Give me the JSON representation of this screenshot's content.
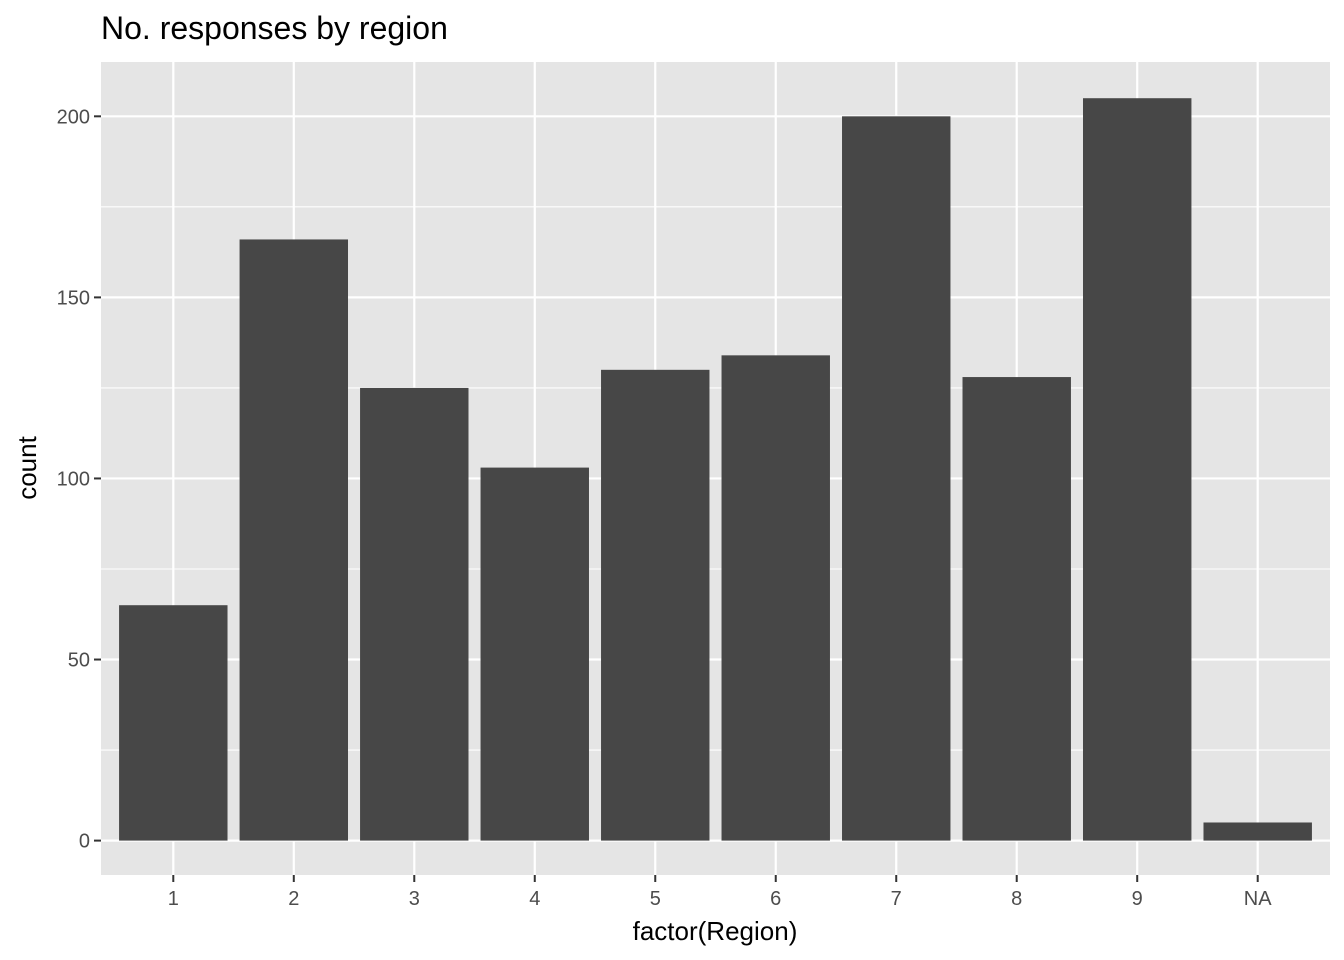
{
  "chart_data": {
    "type": "bar",
    "title": "No. responses by region",
    "xlabel": "factor(Region)",
    "ylabel": "count",
    "categories": [
      "1",
      "2",
      "3",
      "4",
      "5",
      "6",
      "7",
      "8",
      "9",
      "NA"
    ],
    "values": [
      65,
      166,
      125,
      103,
      130,
      134,
      200,
      128,
      205,
      5
    ],
    "ylim": [
      -9.5,
      215
    ],
    "yticks": [
      0,
      50,
      100,
      150,
      200
    ],
    "yticks_minor": [
      25,
      75,
      125,
      175
    ],
    "ytick_labels": [
      "0",
      "50",
      "100",
      "150",
      "200"
    ],
    "grid": true,
    "legend": "none",
    "colors": {
      "bar": "#474747",
      "panel": "#e5e5e5",
      "grid": "#ffffff",
      "tick_text": "#4d4d4d",
      "axis_tick": "#333333",
      "text": "#000000"
    }
  }
}
